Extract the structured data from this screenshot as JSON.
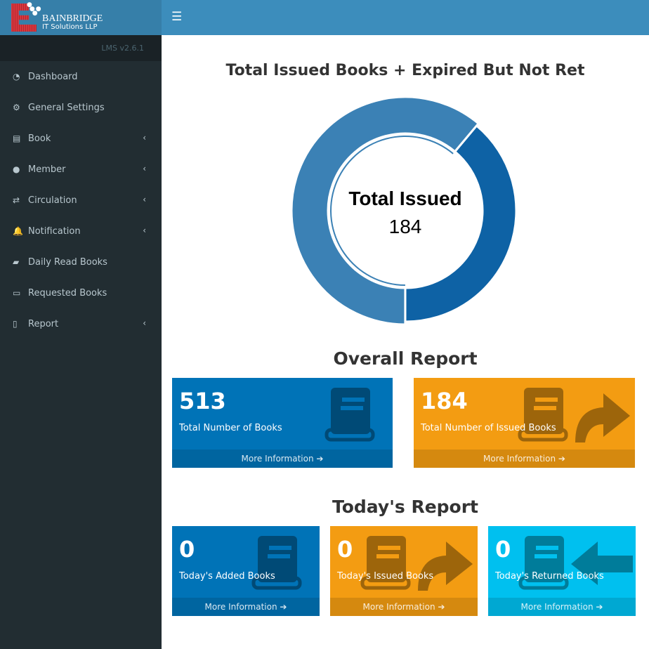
{
  "brand": {
    "name": "BAINBRIDGE",
    "sub": "IT Solutions LLP",
    "version": "LMS v2.6.1"
  },
  "navbar": {
    "toggle_icon": "hamburger-icon"
  },
  "sidebar": {
    "items": [
      {
        "label": "Dashboard",
        "icon": "dashboard-icon",
        "submenu": false
      },
      {
        "label": "General Settings",
        "icon": "gears-icon",
        "submenu": false
      },
      {
        "label": "Book",
        "icon": "book-icon",
        "submenu": true
      },
      {
        "label": "Member",
        "icon": "user-icon",
        "submenu": true
      },
      {
        "label": "Circulation",
        "icon": "retweet-icon",
        "submenu": true
      },
      {
        "label": "Notification",
        "icon": "bell-icon",
        "submenu": true
      },
      {
        "label": "Daily Read Books",
        "icon": "folder-open-icon",
        "submenu": false
      },
      {
        "label": "Requested Books",
        "icon": "inbox-icon",
        "submenu": false
      },
      {
        "label": "Report",
        "icon": "file-pdf-icon",
        "submenu": true
      }
    ]
  },
  "main": {
    "chart_title": "Total Issued Books + Expired But Not Ret",
    "overall_title": "Overall Report",
    "today_title": "Today's Report",
    "overall": [
      {
        "value": "513",
        "label": "Total Number of Books",
        "footer": "More Information",
        "color": "#0073b7"
      },
      {
        "value": "184",
        "label": "Total Number of Issued Books",
        "footer": "More Information",
        "color": "#f39c12"
      }
    ],
    "today": [
      {
        "value": "0",
        "label": "Today's Added Books",
        "footer": "More Information",
        "color": "#0073b7"
      },
      {
        "value": "0",
        "label": "Today's Issued Books",
        "footer": "More Information",
        "color": "#f39c12"
      },
      {
        "value": "0",
        "label": "Today's Returned Books",
        "footer": "More Information",
        "color": "#00c0ef"
      }
    ]
  },
  "chart_data": {
    "type": "pie",
    "donut": true,
    "center_label": "Total Issued",
    "center_value": "184",
    "segments": [
      {
        "fraction": 0.389,
        "color": "#0e62a5"
      },
      {
        "fraction": 0.611,
        "color": "#3b81b5"
      }
    ]
  }
}
